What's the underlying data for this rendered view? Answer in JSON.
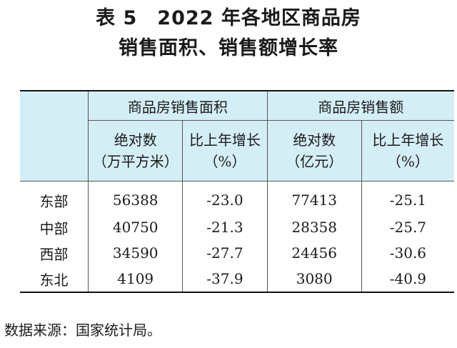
{
  "title": {
    "line1": "表 5　2022 年各地区商品房",
    "line2": "销售面积、销售额增长率"
  },
  "table": {
    "group_headers": [
      "商品房销售面积",
      "商品房销售额"
    ],
    "sub_headers": [
      {
        "line1": "绝对数",
        "line2": "（万平方米）"
      },
      {
        "line1": "比上年增长",
        "line2": "（%）"
      },
      {
        "line1": "绝对数",
        "line2": "（亿元）"
      },
      {
        "line1": "比上年增长",
        "line2": "（%）"
      }
    ],
    "rows": [
      {
        "region": "东部",
        "area": "56388",
        "area_growth": "-23.0",
        "sales": "77413",
        "sales_growth": "-25.1"
      },
      {
        "region": "中部",
        "area": "40750",
        "area_growth": "-21.3",
        "sales": "28358",
        "sales_growth": "-25.7"
      },
      {
        "region": "西部",
        "area": "34590",
        "area_growth": "-27.7",
        "sales": "24456",
        "sales_growth": "-30.6"
      },
      {
        "region": "东北",
        "area": "4109",
        "area_growth": "-37.9",
        "sales": "3080",
        "sales_growth": "-40.9"
      }
    ]
  },
  "source": "数据来源：国家统计局。",
  "colors": {
    "header_bg": "#d4eef6"
  }
}
